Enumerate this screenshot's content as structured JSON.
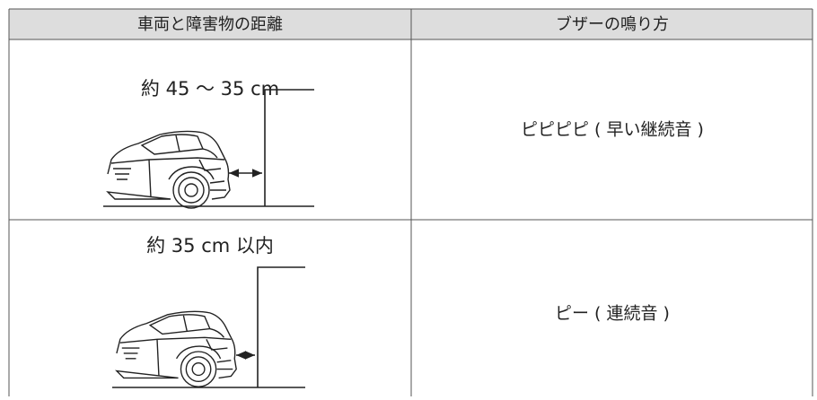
{
  "table": {
    "header": [
      "車両と障害物の距離",
      "ブザーの鳴り方"
    ],
    "rows": [
      [
        "約 45 ～ 35 cm",
        "ピピピピ ( 早い継続音 )"
      ],
      [
        "約 35 cm 以内",
        "ピー ( 連続音 )"
      ]
    ]
  }
}
